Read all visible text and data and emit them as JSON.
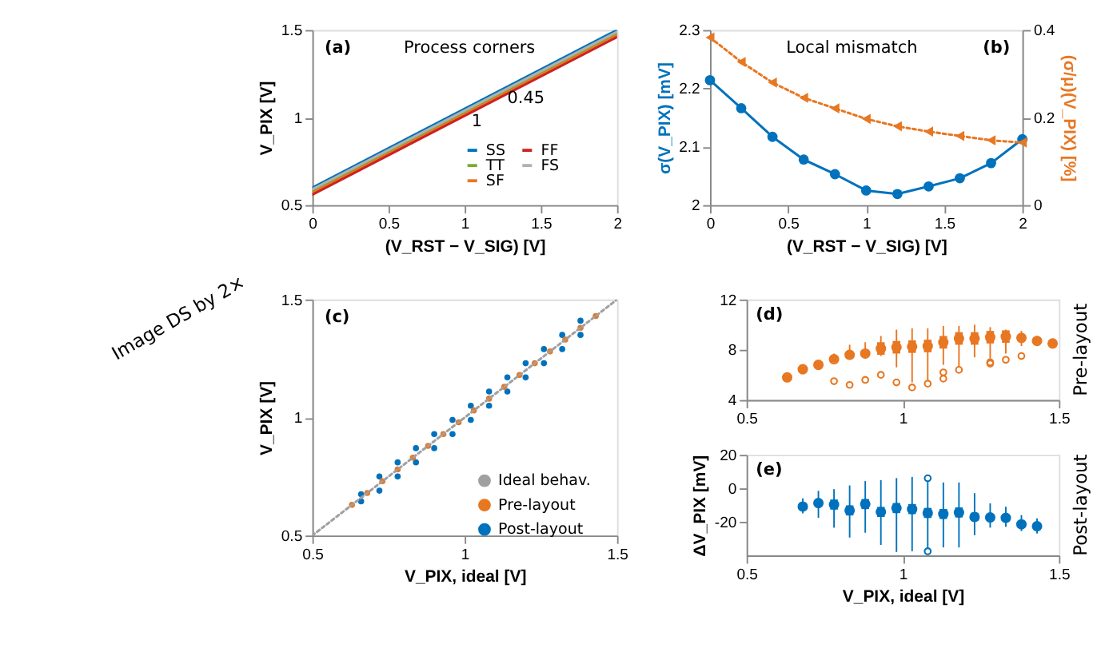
{
  "chart_data": [
    {
      "type": "line",
      "xlabel": "(V_RST − V_SIG) [V]",
      "ylabel": "V_PIX [V]",
      "xlim": [
        0,
        2
      ],
      "xticks": [
        0,
        0.5,
        1,
        1.5,
        2
      ],
      "ylim": [
        0.5,
        1.5
      ],
      "yticks": [
        0.5,
        1,
        1.5
      ],
      "legend": "bottom right",
      "annotations": [
        "(a)",
        "Process corners",
        "0.45",
        "1"
      ],
      "series": [
        {
          "name": "SS",
          "color": "#0072bd",
          "line_style": "solid",
          "x": [
            0,
            2
          ],
          "values": [
            0.6,
            1.5
          ]
        },
        {
          "name": "TT",
          "color": "#77ac30",
          "line_style": "solid",
          "x": [
            0,
            2
          ],
          "values": [
            0.58,
            1.48
          ]
        },
        {
          "name": "SF",
          "color": "#e87722",
          "line_style": "solid",
          "x": [
            0,
            2
          ],
          "values": [
            0.57,
            1.47
          ]
        },
        {
          "name": "FF",
          "color": "#cc2222",
          "line_style": "solid",
          "x": [
            0,
            2
          ],
          "values": [
            0.56,
            1.46
          ]
        },
        {
          "name": "FS",
          "color": "#b0b0b0",
          "line_style": "solid",
          "x": [
            0,
            2
          ],
          "values": [
            0.59,
            1.49
          ]
        }
      ]
    },
    {
      "type": "line",
      "xlabel": "(V_RST − V_SIG) [V]",
      "ylabel": "σ(V_PIX) [mV]",
      "y2label": "(σ/μ)(V_PIX) [%]",
      "xlim": [
        0,
        2
      ],
      "xticks": [
        0,
        0.5,
        1,
        1.5,
        2
      ],
      "ylim": [
        2,
        2.3
      ],
      "yticks": [
        2,
        2.1,
        2.2,
        2.3
      ],
      "y2lim": [
        0,
        0.4
      ],
      "y2ticks": [
        0,
        0.2,
        0.4
      ],
      "annotations": [
        "Local mismatch",
        "(b)"
      ],
      "x": [
        0,
        0.2,
        0.4,
        0.6,
        0.8,
        1.0,
        1.2,
        1.4,
        1.6,
        1.8,
        2.0
      ],
      "series": [
        {
          "color": "#0072bd",
          "marker": "circle",
          "line_style": "solid",
          "values": [
            2.214,
            2.166,
            2.117,
            2.078,
            2.053,
            2.025,
            2.019,
            2.032,
            2.046,
            2.072,
            2.113
          ]
        },
        {
          "color": "#e87722",
          "marker": "triangle",
          "line_style": "dotted",
          "axis": "y2",
          "values": [
            0.383,
            0.327,
            0.28,
            0.245,
            0.221,
            0.197,
            0.18,
            0.168,
            0.158,
            0.148,
            0.143
          ]
        }
      ]
    },
    {
      "type": "scatter",
      "xlabel": "V_PIX, ideal [V]",
      "ylabel": "V_PIX [V]",
      "xlim": [
        0.5,
        1.5
      ],
      "xticks": [
        0.5,
        1,
        1.5
      ],
      "ylim": [
        0.5,
        1.5
      ],
      "yticks": [
        0.5,
        1,
        1.5
      ],
      "legend": "bottom right",
      "annotations": [
        "(c)",
        "Image DS by 2×"
      ],
      "series": [
        {
          "name": "Ideal behav.",
          "type": "line",
          "line_style": "dotted",
          "marker": "none",
          "color": "#a0a0a0",
          "x": [
            0.5,
            1.5
          ],
          "values": [
            0.5,
            1.5
          ]
        },
        {
          "name": "Pre-layout",
          "marker": "circle",
          "color": "#e87722",
          "x": [
            0.63,
            0.68,
            0.73,
            0.78,
            0.83,
            0.88,
            0.93,
            0.98,
            1.03,
            1.08,
            1.13,
            1.18,
            1.23,
            1.28,
            1.33,
            1.38,
            1.43
          ],
          "values": [
            0.63,
            0.68,
            0.73,
            0.78,
            0.83,
            0.88,
            0.93,
            0.98,
            1.03,
            1.08,
            1.13,
            1.18,
            1.23,
            1.28,
            1.33,
            1.38,
            1.43
          ]
        },
        {
          "name": "Post-layout",
          "marker": "circle",
          "color": "#0072bd",
          "x": [
            0.66,
            0.66,
            0.72,
            0.72,
            0.78,
            0.78,
            0.84,
            0.84,
            0.9,
            0.9,
            0.96,
            0.96,
            1.02,
            1.02,
            1.08,
            1.08,
            1.14,
            1.14,
            1.2,
            1.2,
            1.26,
            1.26,
            1.32,
            1.32,
            1.38,
            1.38
          ],
          "values": [
            0.675,
            0.645,
            0.75,
            0.69,
            0.81,
            0.75,
            0.87,
            0.81,
            0.93,
            0.87,
            0.99,
            0.93,
            1.05,
            0.99,
            1.11,
            1.05,
            1.17,
            1.11,
            1.23,
            1.17,
            1.29,
            1.23,
            1.35,
            1.29,
            1.41,
            1.35
          ]
        }
      ]
    },
    {
      "type": "box",
      "xlim": [
        0.5,
        1.5
      ],
      "xticks": [
        0.5,
        1,
        1.5
      ],
      "ylim": [
        4,
        12
      ],
      "yticks": [
        4,
        8,
        12
      ],
      "marker": "circle",
      "annotations": [
        "(d)",
        "Pre-layout"
      ],
      "series": [
        {
          "color": "#e87722",
          "x": [
            0.63,
            0.68,
            0.73,
            0.78,
            0.83,
            0.88,
            0.93,
            0.98,
            1.03,
            1.08,
            1.13,
            1.18,
            1.23,
            1.28,
            1.33,
            1.38,
            1.43,
            1.48
          ],
          "boxes": [
            {
              "low": 5.5,
              "q1": 5.55,
              "median": 5.8,
              "q3": 6.05,
              "high": 6.1
            },
            {
              "low": 6.2,
              "q1": 6.2,
              "median": 6.45,
              "q3": 6.7,
              "high": 6.7
            },
            {
              "low": 6.4,
              "q1": 6.55,
              "median": 6.8,
              "q3": 7.05,
              "high": 7.1
            },
            {
              "low": 7.0,
              "q1": 7.0,
              "median": 7.25,
              "q3": 7.5,
              "high": 7.7,
              "outliers": [
                5.5
              ]
            },
            {
              "low": 7.3,
              "q1": 7.35,
              "median": 7.6,
              "q3": 7.85,
              "high": 8.4,
              "outliers": [
                5.2
              ]
            },
            {
              "low": 7.3,
              "q1": 7.45,
              "median": 7.7,
              "q3": 7.95,
              "high": 8.6,
              "outliers": [
                5.6
              ]
            },
            {
              "low": 7.5,
              "q1": 7.6,
              "median": 8.1,
              "q3": 8.6,
              "high": 9.1,
              "outliers": [
                6.0
              ]
            },
            {
              "low": 6.6,
              "q1": 7.7,
              "median": 8.2,
              "q3": 8.7,
              "high": 9.6,
              "outliers": [
                5.4
              ]
            },
            {
              "low": 5.4,
              "q1": 7.75,
              "median": 8.25,
              "q3": 8.75,
              "high": 9.7,
              "outliers": [
                5.0
              ]
            },
            {
              "low": 5.6,
              "q1": 7.8,
              "median": 8.3,
              "q3": 8.8,
              "high": 9.7,
              "outliers": [
                5.3
              ]
            },
            {
              "low": 6.8,
              "q1": 8.1,
              "median": 8.6,
              "q3": 9.1,
              "high": 9.9,
              "outliers": [
                6.2,
                5.7
              ]
            },
            {
              "low": 6.6,
              "q1": 8.4,
              "median": 8.9,
              "q3": 9.4,
              "high": 9.9,
              "outliers": [
                6.4
              ]
            },
            {
              "low": 7.4,
              "q1": 8.4,
              "median": 8.9,
              "q3": 9.4,
              "high": 10.0
            },
            {
              "low": 7.3,
              "q1": 8.5,
              "median": 9.0,
              "q3": 9.5,
              "high": 9.8,
              "outliers": [
                7.0,
                6.9
              ]
            },
            {
              "low": 7.7,
              "q1": 8.55,
              "median": 9.05,
              "q3": 9.55,
              "high": 9.6,
              "outliers": [
                7.2
              ]
            },
            {
              "low": 8.3,
              "q1": 8.7,
              "median": 8.95,
              "q3": 9.2,
              "high": 9.5,
              "outliers": [
                7.5
              ]
            },
            {
              "low": 8.3,
              "q1": 8.45,
              "median": 8.7,
              "q3": 8.95,
              "high": 9.1
            },
            {
              "low": 8.2,
              "q1": 8.25,
              "median": 8.5,
              "q3": 8.75,
              "high": 8.8
            }
          ]
        }
      ]
    },
    {
      "type": "box",
      "xlabel": "V_PIX, ideal [V]",
      "ylabel": "ΔV_PIX [mV]",
      "xlim": [
        0.5,
        1.5
      ],
      "xticks": [
        0.5,
        1,
        1.5
      ],
      "ylim": [
        -40,
        20
      ],
      "yticks": [
        -20,
        0,
        20
      ],
      "marker": "circle",
      "annotations": [
        "(e)",
        "Post-layout"
      ],
      "series": [
        {
          "color": "#0072bd",
          "x": [
            0.68,
            0.73,
            0.78,
            0.83,
            0.88,
            0.93,
            0.98,
            1.03,
            1.08,
            1.13,
            1.18,
            1.23,
            1.28,
            1.33,
            1.38,
            1.43
          ],
          "boxes": [
            {
              "low": -15,
              "q1": -13,
              "median": -10.9,
              "q3": -8.8,
              "high": -6
            },
            {
              "low": -17.6,
              "q1": -10.8,
              "median": -8.8,
              "q3": -6.8,
              "high": -1.5
            },
            {
              "low": -23.5,
              "q1": -12.7,
              "median": -9.7,
              "q3": -6.7,
              "high": -0.5
            },
            {
              "low": -29.4,
              "q1": -16.2,
              "median": -13.2,
              "q3": -10.2,
              "high": 1.7
            },
            {
              "low": -26.5,
              "q1": -12.4,
              "median": -9.4,
              "q3": -6.4,
              "high": 4.3
            },
            {
              "low": -33.8,
              "q1": -17.1,
              "median": -14.1,
              "q3": -11.1,
              "high": 4.9
            },
            {
              "low": -38,
              "q1": -14.8,
              "median": -11.8,
              "q3": -8.8,
              "high": 6.1
            },
            {
              "low": -37.6,
              "q1": -15.4,
              "median": -12.4,
              "q3": -9.4,
              "high": 6.8
            },
            {
              "low": -35.3,
              "q1": -17.7,
              "median": -14.7,
              "q3": -11.7,
              "high": 3.8,
              "outliers": [
                6.0,
                -37.6
              ]
            },
            {
              "low": -35.3,
              "q1": -18.3,
              "median": -15.3,
              "q3": -12.3,
              "high": 3.5
            },
            {
              "low": -35.3,
              "q1": -17.4,
              "median": -14.4,
              "q3": -11.4,
              "high": 3.5
            },
            {
              "low": -28,
              "q1": -19.6,
              "median": -17.1,
              "q3": -14.6,
              "high": -2.9
            },
            {
              "low": -23.5,
              "q1": -19.4,
              "median": -17.4,
              "q3": -15.4,
              "high": -9
            },
            {
              "low": -23,
              "q1": -19.6,
              "median": -17.6,
              "q3": -15.6,
              "high": -11
            },
            {
              "low": -25.5,
              "q1": -23.5,
              "median": -21.5,
              "q3": -19.5,
              "high": -16
            },
            {
              "low": -27,
              "q1": -24.6,
              "median": -22.6,
              "q3": -20.6,
              "high": -18
            }
          ]
        }
      ]
    }
  ]
}
